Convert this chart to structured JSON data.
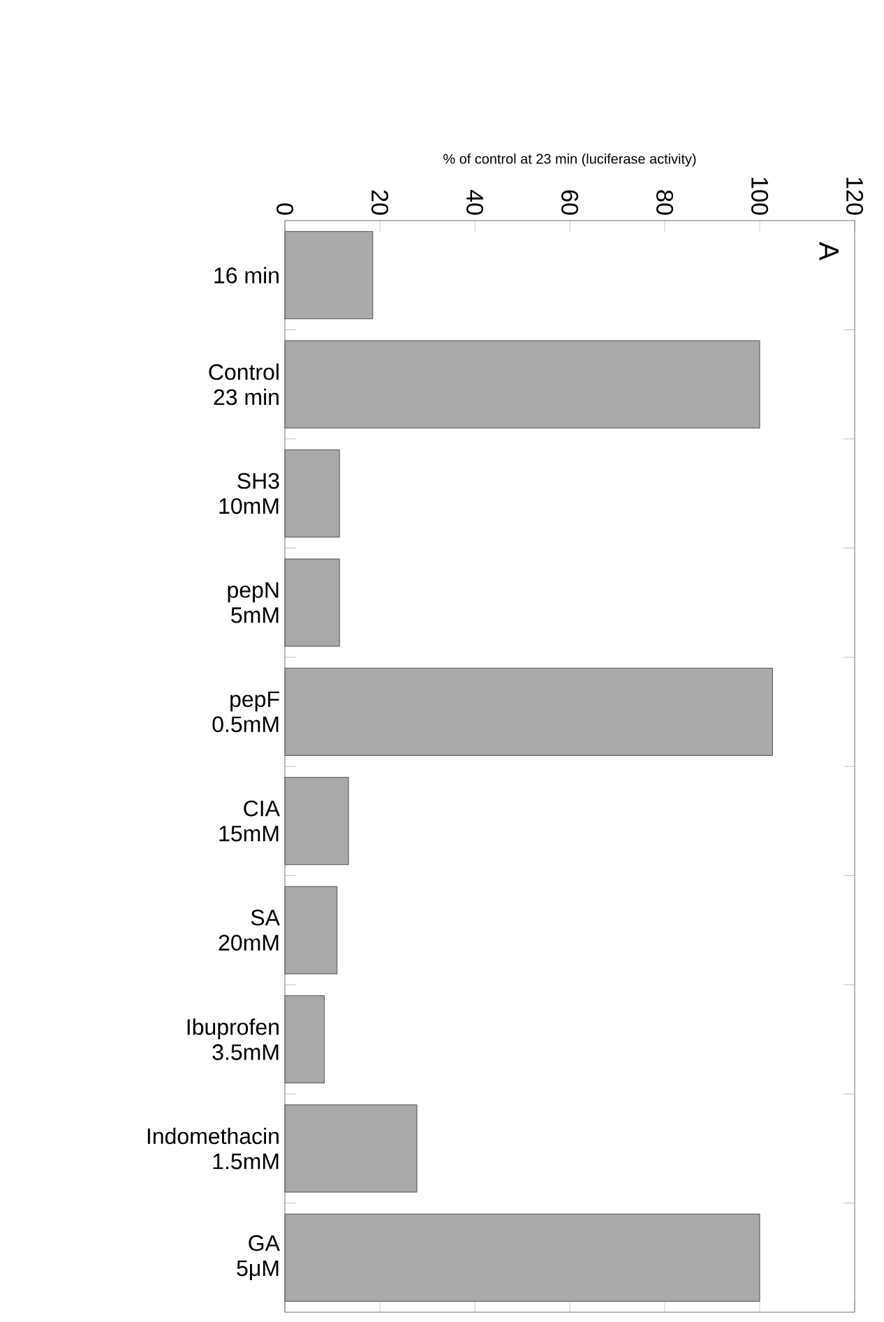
{
  "chart_data": {
    "type": "bar",
    "orientation": "horizontal",
    "xlabel": "% of control at 23 min (luciferase activity)",
    "categories": [
      "16 min",
      "Control\n23 min",
      "SH3\n10mM",
      "pepN\n5mM",
      "pepF\n0.5mM",
      "CIA\n15mM",
      "SA\n20mM",
      "Ibuprofen\n3.5mM",
      "Indomethacin\n1.5mM",
      "GA\n5μM"
    ],
    "values": [
      18.5,
      100,
      11.5,
      11.5,
      102.7,
      13.4,
      11,
      8.3,
      27.8,
      100
    ],
    "color": "#a9a9a9",
    "xlim": [
      0,
      120
    ],
    "xticks": [
      0,
      20,
      40,
      60,
      80,
      100,
      120
    ],
    "annotations": [
      "A"
    ]
  }
}
